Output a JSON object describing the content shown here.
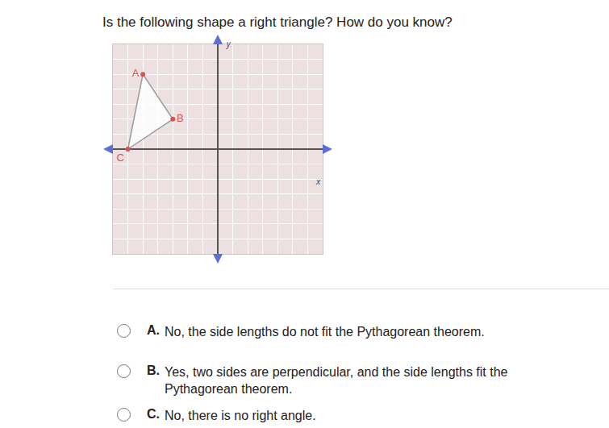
{
  "question": "Is the following shape a right triangle? How do you know?",
  "chart_data": {
    "type": "scatter",
    "x": [
      -5,
      -3,
      -6
    ],
    "y": [
      5,
      2,
      0
    ],
    "labels": [
      "A",
      "B",
      "C"
    ],
    "xlabel": "x",
    "ylabel": "y",
    "xlim": [
      -7,
      7
    ],
    "ylim": [
      -7,
      7
    ],
    "xticks": [
      -7,
      -6,
      -5,
      -4,
      -3,
      -2,
      -1,
      0,
      1,
      2,
      3,
      4,
      5,
      6,
      7
    ],
    "yticks": [
      -7,
      -6,
      -5,
      -4,
      -3,
      -2,
      -1,
      0,
      1,
      2,
      3,
      4,
      5,
      6,
      7
    ],
    "grid": true,
    "tick_labels": false,
    "color": "#d9534f"
  },
  "choices": [
    {
      "letter": "A.",
      "text": "No, the side lengths do not fit the Pythagorean theorem."
    },
    {
      "letter": "B.",
      "text": "Yes, two sides are perpendicular, and the side lengths fit the Pythagorean theorem."
    },
    {
      "letter": "C.",
      "text": "No, there is no right angle."
    }
  ]
}
